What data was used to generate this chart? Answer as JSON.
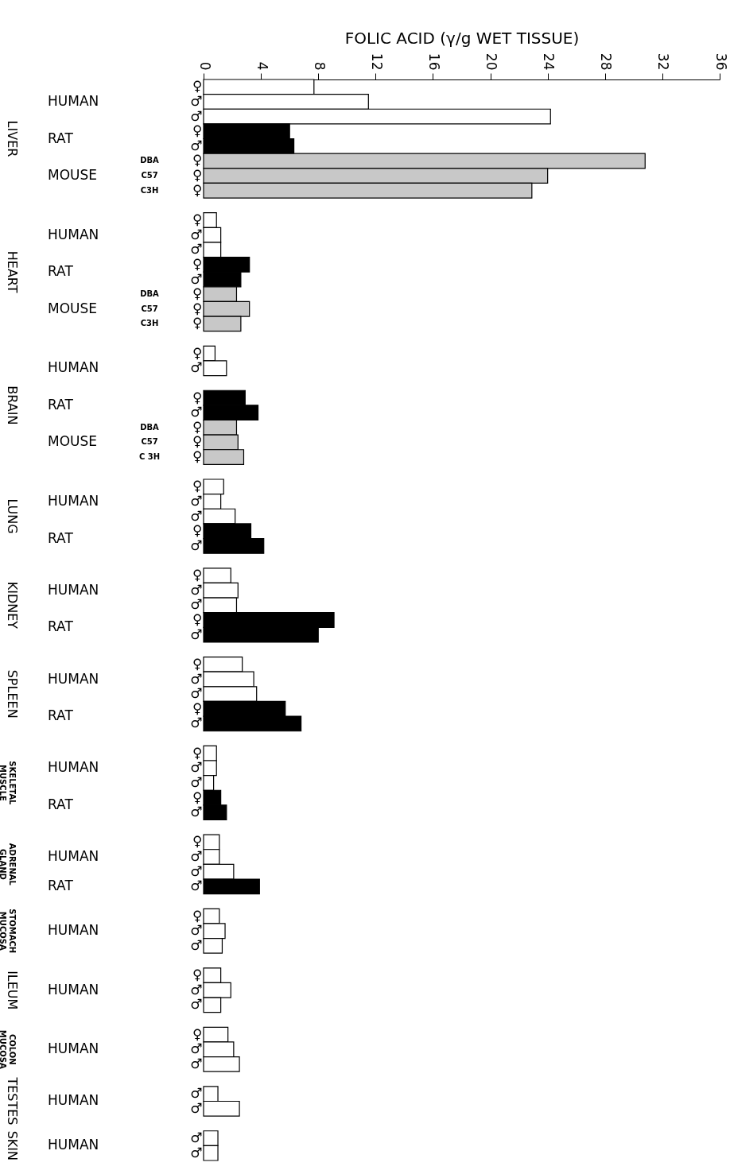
{
  "chart_data": {
    "type": "bar",
    "orientation": "horizontal",
    "xlabel": "FOLIC ACID (γ/g WET TISSUE)",
    "xlim": [
      0,
      36
    ],
    "xticks": [
      0,
      4,
      8,
      12,
      16,
      20,
      24,
      28,
      32,
      36
    ],
    "categories": [
      "♀",
      "♂",
      "♂",
      "♀",
      "♂",
      "♀",
      "♀",
      "♀",
      null,
      "♀",
      "♂",
      "♂",
      "♀",
      "♂",
      "♀",
      "♀",
      "♀",
      null,
      "♀",
      "♂",
      null,
      "♀",
      "♂",
      "♀",
      "♀",
      "♀",
      null,
      "♀",
      "♂",
      "♂",
      "♀",
      "♂",
      null,
      "♀",
      "♂",
      "♂",
      "♀",
      "♂",
      null,
      "♀",
      "♂",
      "♂",
      "♀",
      "♂",
      null,
      "♀",
      "♂",
      "♂",
      "♀",
      "♂",
      null,
      "♀",
      "♂",
      "♂",
      "♂",
      null,
      "♀",
      "♂",
      "♂",
      null,
      "♀",
      "♂",
      "♂",
      null,
      "♀",
      "♂",
      "♂",
      null,
      "♂",
      "♂",
      null,
      "♂",
      "♂"
    ],
    "series": [
      {
        "color": "#ffffff",
        "values": [
          7.7,
          11.5,
          24.2,
          null,
          null,
          null,
          null,
          null,
          null,
          0.9,
          1.2,
          1.2,
          null,
          null,
          null,
          null,
          null,
          null,
          0.8,
          1.6,
          null,
          null,
          null,
          null,
          null,
          null,
          null,
          1.4,
          1.2,
          2.2,
          null,
          null,
          null,
          1.9,
          2.4,
          2.3,
          null,
          null,
          null,
          2.7,
          3.5,
          3.7,
          null,
          null,
          null,
          0.9,
          0.9,
          0.7,
          null,
          null,
          null,
          1.1,
          1.1,
          2.1,
          null,
          null,
          1.1,
          1.5,
          1.3,
          null,
          1.2,
          1.9,
          1.2,
          null,
          1.7,
          2.1,
          2.5,
          null,
          1.0,
          2.5,
          null,
          1.0,
          1.0
        ]
      },
      {
        "color": "#000000",
        "values": [
          null,
          null,
          null,
          6.0,
          6.3,
          null,
          null,
          null,
          null,
          null,
          null,
          null,
          3.2,
          2.6,
          null,
          null,
          null,
          null,
          null,
          null,
          null,
          2.9,
          3.8,
          null,
          null,
          null,
          null,
          null,
          null,
          null,
          3.3,
          4.2,
          null,
          null,
          null,
          null,
          9.1,
          8.0,
          null,
          null,
          null,
          null,
          5.7,
          6.8,
          null,
          null,
          null,
          null,
          1.2,
          1.6,
          null,
          null,
          null,
          null,
          3.9,
          null,
          null,
          null,
          null,
          null,
          null,
          null,
          null,
          null,
          null,
          null,
          null,
          null,
          null,
          null,
          null,
          null,
          null
        ]
      },
      {
        "color": "#c8c8c8",
        "values": [
          null,
          null,
          null,
          null,
          null,
          30.8,
          24.0,
          22.9,
          null,
          null,
          null,
          null,
          null,
          null,
          2.3,
          3.2,
          2.6,
          null,
          null,
          null,
          null,
          null,
          null,
          2.3,
          2.4,
          2.8,
          null,
          null,
          null,
          null,
          null,
          null,
          null,
          null,
          null,
          null,
          null,
          null,
          null,
          null,
          null,
          null,
          null,
          null,
          null,
          null,
          null,
          null,
          null,
          null,
          null,
          null,
          null,
          null,
          null,
          null,
          null,
          null,
          null,
          null,
          null,
          null,
          null,
          null,
          null,
          null,
          null,
          null,
          null,
          null,
          null,
          null,
          null
        ]
      }
    ],
    "annotations": [
      "LIVER",
      "HUMAN",
      "RAT",
      "MOUSE",
      "DBA",
      "C57",
      "C3H",
      "HEART",
      "HUMAN",
      "RAT",
      "MOUSE",
      "DBA",
      "C57",
      "C3H",
      "BRAIN",
      "HUMAN",
      "RAT",
      "MOUSE",
      "DBA",
      "C57",
      "C 3H",
      "LUNG",
      "HUMAN",
      "RAT",
      "KIDNEY",
      "HUMAN",
      "RAT",
      "SPLEEN",
      "HUMAN",
      "RAT",
      "SKELETAL MUSCLE",
      "HUMAN",
      "RAT",
      "ADRENAL GLAND",
      "HUMAN",
      "RAT",
      "STOMACH MUCOSA",
      "HUMAN",
      "ILEUM",
      "HUMAN",
      "COLON MUCOSA",
      "HUMAN",
      "TESTES",
      "HUMAN",
      "SKIN",
      "HUMAN"
    ]
  }
}
